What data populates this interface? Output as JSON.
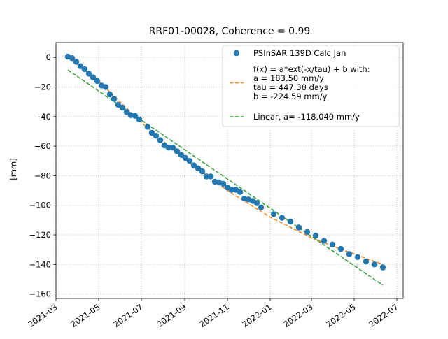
{
  "chart_data": {
    "type": "scatter",
    "title": "RRF01-00028, Coherence = 0.99",
    "xlabel": "",
    "ylabel": "[mm]",
    "grid": true,
    "legend_position": "top-right",
    "xlim": [
      "2021-03-01",
      "2022-07-10"
    ],
    "ylim": [
      -163,
      10
    ],
    "x_ticks": [
      "2021-03-01",
      "2021-05-01",
      "2021-07-01",
      "2021-09-01",
      "2021-11-01",
      "2022-01-01",
      "2022-03-01",
      "2022-05-01",
      "2022-07-01"
    ],
    "x_tick_labels": [
      "2021-03",
      "2021-05",
      "2021-07",
      "2021-09",
      "2021-11",
      "2022-01",
      "2022-03",
      "2022-05",
      "2022-07"
    ],
    "y_ticks": [
      0,
      -20,
      -40,
      -60,
      -80,
      -100,
      -120,
      -140,
      -160
    ],
    "y_tick_labels": [
      "0",
      "−20",
      "−40",
      "−60",
      "−80",
      "−100",
      "−120",
      "−140",
      "−160"
    ],
    "series": [
      {
        "name": "PSInSAR 139D Calc Jan",
        "kind": "scatter",
        "color": "#1f77b4",
        "points": [
          [
            "2021-03-18",
            0.5
          ],
          [
            "2021-03-24",
            -0.5
          ],
          [
            "2021-03-30",
            -3
          ],
          [
            "2021-04-05",
            -6
          ],
          [
            "2021-04-11",
            -8
          ],
          [
            "2021-04-17",
            -11
          ],
          [
            "2021-04-23",
            -13.5
          ],
          [
            "2021-04-29",
            -16
          ],
          [
            "2021-05-05",
            -19
          ],
          [
            "2021-05-11",
            -20
          ],
          [
            "2021-05-17",
            -25
          ],
          [
            "2021-05-23",
            -28
          ],
          [
            "2021-05-29",
            -32
          ],
          [
            "2021-06-04",
            -34
          ],
          [
            "2021-06-10",
            -37
          ],
          [
            "2021-06-16",
            -39
          ],
          [
            "2021-06-22",
            -39.5
          ],
          [
            "2021-06-28",
            -42
          ],
          [
            "2021-07-10",
            -47
          ],
          [
            "2021-07-16",
            -51
          ],
          [
            "2021-07-22",
            -53
          ],
          [
            "2021-07-28",
            -56
          ],
          [
            "2021-08-03",
            -59.5
          ],
          [
            "2021-08-09",
            -61
          ],
          [
            "2021-08-15",
            -61
          ],
          [
            "2021-08-21",
            -63.5
          ],
          [
            "2021-08-27",
            -66
          ],
          [
            "2021-09-02",
            -68
          ],
          [
            "2021-09-08",
            -70
          ],
          [
            "2021-09-14",
            -73
          ],
          [
            "2021-09-20",
            -75
          ],
          [
            "2021-09-26",
            -77
          ],
          [
            "2021-10-02",
            -80.5
          ],
          [
            "2021-10-08",
            -80.5
          ],
          [
            "2021-10-14",
            -84
          ],
          [
            "2021-10-20",
            -84.5
          ],
          [
            "2021-10-26",
            -85.5
          ],
          [
            "2021-11-01",
            -88
          ],
          [
            "2021-11-07",
            -89.5
          ],
          [
            "2021-11-13",
            -89.5
          ],
          [
            "2021-11-19",
            -91
          ],
          [
            "2021-11-25",
            -95.5
          ],
          [
            "2021-12-01",
            -96
          ],
          [
            "2021-12-07",
            -97
          ],
          [
            "2021-12-13",
            -98.5
          ],
          [
            "2021-12-19",
            -101.5
          ],
          [
            "2022-01-06",
            -106
          ],
          [
            "2022-01-18",
            -108.5
          ],
          [
            "2022-01-30",
            -111
          ],
          [
            "2022-02-11",
            -115
          ],
          [
            "2022-02-23",
            -118
          ],
          [
            "2022-03-07",
            -120.5
          ],
          [
            "2022-03-19",
            -124
          ],
          [
            "2022-03-31",
            -126.5
          ],
          [
            "2022-04-12",
            -129.5
          ],
          [
            "2022-04-24",
            -133
          ],
          [
            "2022-05-06",
            -135
          ],
          [
            "2022-05-18",
            -138
          ],
          [
            "2022-05-30",
            -140
          ],
          [
            "2022-06-11",
            -142
          ]
        ]
      },
      {
        "name": "f(x) = a*ext(-x/tau) + b with:\na  = 183.50 mm/y\ntau = 447.38 days\nb = -224.59 mm/y",
        "kind": "dashed-line",
        "color": "#ff7f0e",
        "points": [
          [
            "2021-03-18",
            0.5
          ],
          [
            "2021-05-01",
            -16
          ],
          [
            "2021-07-01",
            -44
          ],
          [
            "2021-09-01",
            -69
          ],
          [
            "2021-11-01",
            -90
          ],
          [
            "2022-01-01",
            -108
          ],
          [
            "2022-03-01",
            -122
          ],
          [
            "2022-05-01",
            -133
          ],
          [
            "2022-06-11",
            -140
          ]
        ]
      },
      {
        "name": "Linear, a= -118.040 mm/y",
        "kind": "dashed-line",
        "color": "#2ca02c",
        "points": [
          [
            "2021-03-18",
            -8.5
          ],
          [
            "2022-06-11",
            -154
          ]
        ]
      }
    ]
  }
}
